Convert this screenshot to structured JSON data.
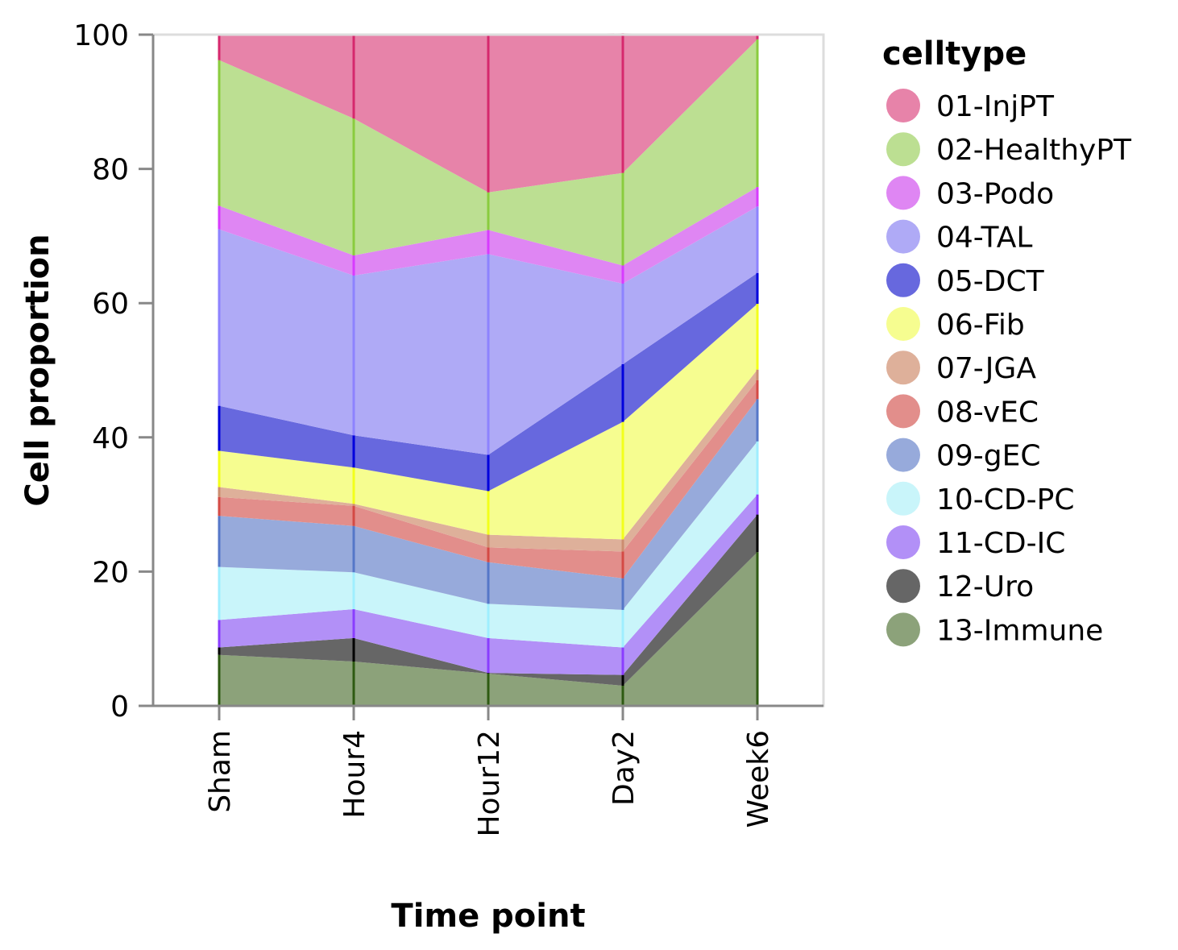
{
  "chart_data": {
    "type": "area",
    "stacked": true,
    "xlabel": "Time point",
    "ylabel": "Cell proportion",
    "ylim": [
      0,
      100
    ],
    "yticks": [
      0,
      20,
      40,
      60,
      80,
      100
    ],
    "categories": [
      "Sham",
      "Hour4",
      "Hour12",
      "Day2",
      "Week6"
    ],
    "legend": {
      "title": "celltype",
      "position": "right"
    },
    "series": [
      {
        "name": "13-Immune",
        "color": "#8ca27a",
        "line": "#2e5a12",
        "values": [
          7.6,
          6.6,
          4.8,
          3.0,
          22.9
        ]
      },
      {
        "name": "12-Uro",
        "color": "#666666",
        "line": "#000000",
        "values": [
          1.1,
          3.5,
          0.1,
          1.6,
          5.6
        ]
      },
      {
        "name": "11-CD-IC",
        "color": "#b290f7",
        "line": "#8a3dff",
        "values": [
          4.1,
          4.3,
          5.2,
          4.1,
          3.0
        ]
      },
      {
        "name": "10-CD-PC",
        "color": "#c9f5fa",
        "line": "#9feeff",
        "values": [
          7.9,
          5.5,
          5.1,
          5.6,
          7.9
        ]
      },
      {
        "name": "09-gEC",
        "color": "#97aadb",
        "line": "#5577c8",
        "values": [
          7.6,
          6.9,
          6.2,
          4.7,
          6.3
        ]
      },
      {
        "name": "08-vEC",
        "color": "#e28e8b",
        "line": "#d44a45",
        "values": [
          2.8,
          3.0,
          2.2,
          4.0,
          2.8
        ]
      },
      {
        "name": "07-JGA",
        "color": "#deb09a",
        "line": "#cc8d70",
        "values": [
          1.5,
          0.3,
          1.9,
          1.8,
          1.6
        ]
      },
      {
        "name": "06-Fib",
        "color": "#f6fd90",
        "line": "#f3ff1a",
        "values": [
          5.4,
          5.4,
          6.5,
          17.5,
          9.8
        ]
      },
      {
        "name": "05-DCT",
        "color": "#6768de",
        "line": "#0000dd",
        "values": [
          6.7,
          4.8,
          5.4,
          8.6,
          4.6
        ]
      },
      {
        "name": "04-TAL",
        "color": "#afaaf6",
        "line": "#8d83ff",
        "values": [
          26.3,
          23.8,
          29.9,
          12.0,
          9.9
        ]
      },
      {
        "name": "03-Podo",
        "color": "#df86f3",
        "line": "#d73bff",
        "values": [
          3.5,
          3.0,
          3.6,
          2.7,
          2.9
        ]
      },
      {
        "name": "02-HealthyPT",
        "color": "#bcdf92",
        "line": "#8acc3e",
        "values": [
          21.7,
          20.4,
          5.6,
          13.8,
          22.0
        ]
      },
      {
        "name": "01-InjPT",
        "color": "#e783a9",
        "line": "#d6286d",
        "values": [
          3.8,
          12.5,
          23.5,
          20.8,
          0.7
        ]
      }
    ],
    "legend_order": [
      "01-InjPT",
      "02-HealthyPT",
      "03-Podo",
      "04-TAL",
      "05-DCT",
      "06-Fib",
      "07-JGA",
      "08-vEC",
      "09-gEC",
      "10-CD-PC",
      "11-CD-IC",
      "12-Uro",
      "13-Immune"
    ],
    "colors": {
      "axis": "#888888",
      "frame": "#dddddd",
      "text": "#000000"
    }
  }
}
